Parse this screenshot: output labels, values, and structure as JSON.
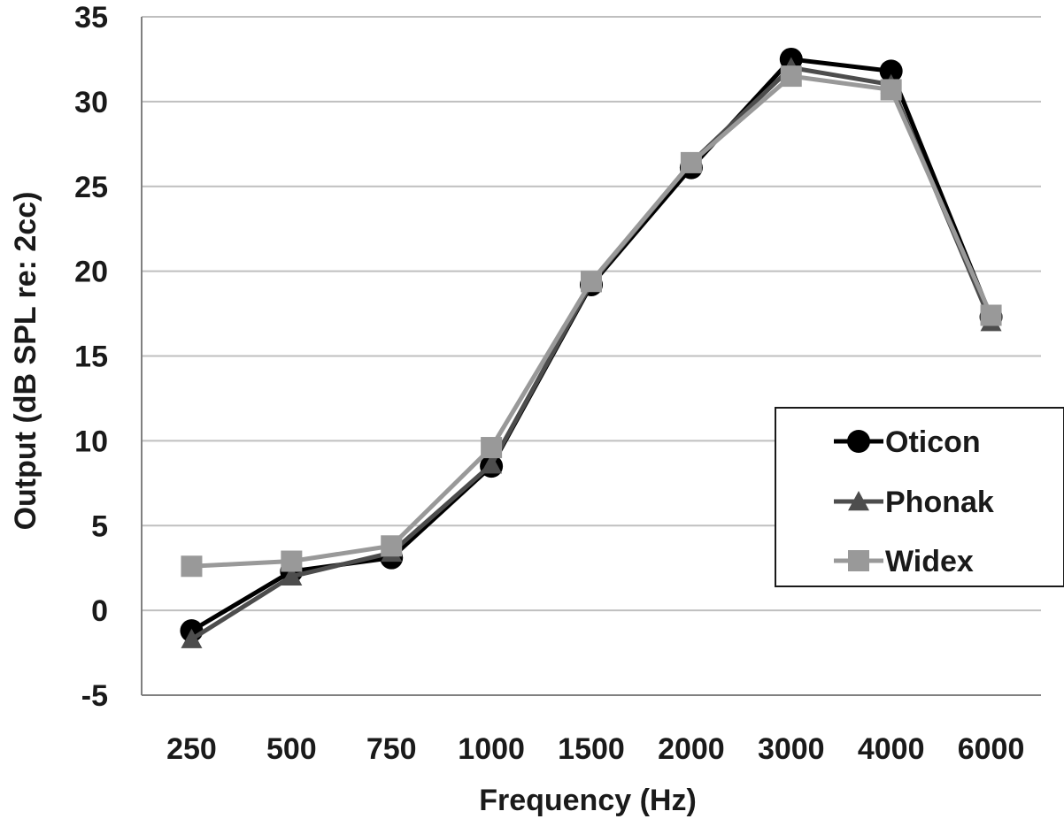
{
  "chart_data": {
    "type": "line",
    "title": "",
    "xlabel": "Frequency (Hz)",
    "ylabel": "Output (dB SPL re: 2cc)",
    "categories": [
      "250",
      "500",
      "750",
      "1000",
      "1500",
      "2000",
      "3000",
      "4000",
      "6000"
    ],
    "ylim": [
      -5,
      35
    ],
    "yticks": [
      35,
      30,
      25,
      20,
      15,
      10,
      5,
      0,
      -5
    ],
    "ytick_labels": [
      "35",
      "30",
      "25",
      "20",
      "15",
      "10",
      "5",
      "0",
      "-5"
    ],
    "grid": "horizontal",
    "legend_position": "right",
    "series": [
      {
        "name": "Oticon",
        "marker": "circle",
        "color": "#000000",
        "values": [
          -1.2,
          2.3,
          3.1,
          8.5,
          19.2,
          26.1,
          32.5,
          31.8,
          17.3
        ]
      },
      {
        "name": "Phonak",
        "marker": "triangle",
        "color": "#4d4d4d",
        "values": [
          -1.7,
          2.0,
          3.4,
          8.6,
          19.3,
          26.4,
          32.0,
          31.0,
          17.0
        ]
      },
      {
        "name": "Widex",
        "marker": "square",
        "color": "#999999",
        "values": [
          2.6,
          2.9,
          3.8,
          9.6,
          19.4,
          26.4,
          31.5,
          30.7,
          17.4
        ]
      }
    ]
  }
}
